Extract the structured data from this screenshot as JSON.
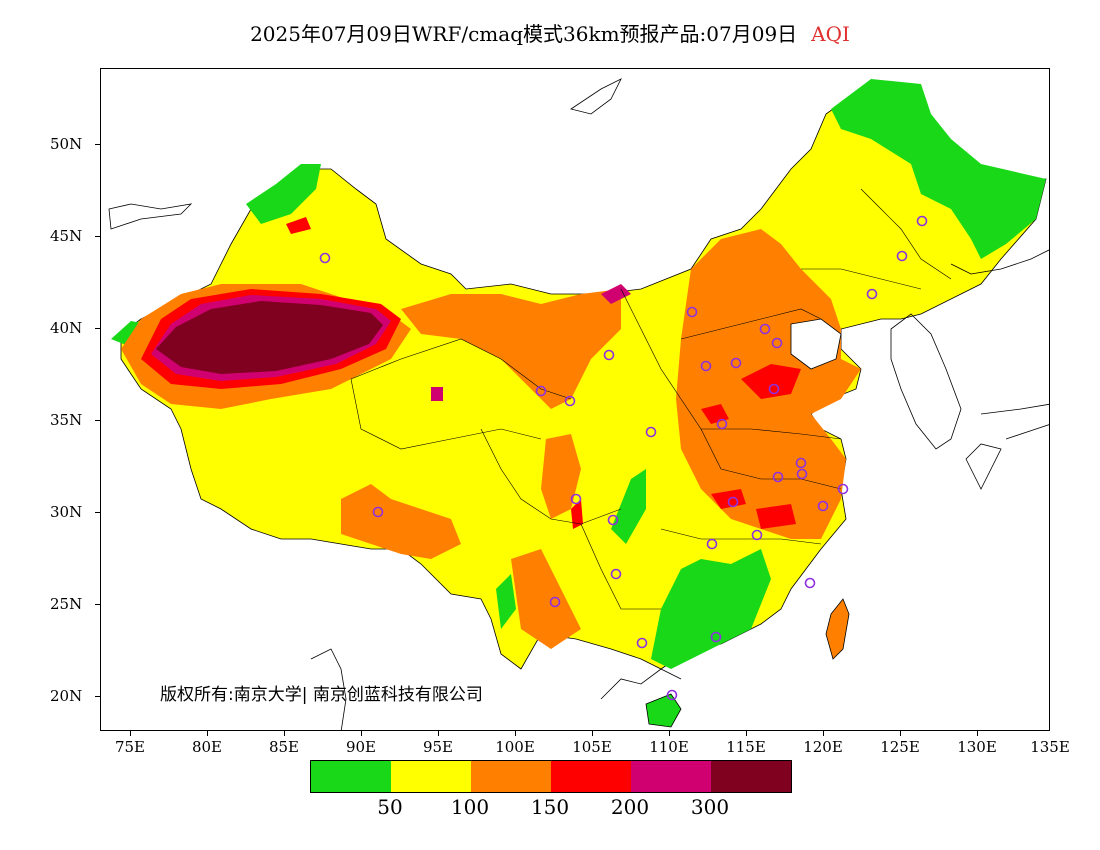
{
  "title": {
    "main": "2025年07月09日WRF/cmaq模式36km预报产品:07月09日",
    "variable": "AQI"
  },
  "axes": {
    "lat_labels": [
      "50N",
      "45N",
      "40N",
      "35N",
      "30N",
      "25N",
      "20N"
    ],
    "lon_labels": [
      "75E",
      "80E",
      "85E",
      "90E",
      "95E",
      "100E",
      "105E",
      "110E",
      "115E",
      "120E",
      "125E",
      "130E",
      "135E"
    ]
  },
  "copyright": "版权所有:南京大学| 南京创蓝科技有限公司",
  "legend": {
    "colors": [
      "#18d818",
      "#ffff00",
      "#ff8000",
      "#ff0000",
      "#d00070",
      "#800020"
    ],
    "labels": [
      "50",
      "100",
      "150",
      "200",
      "300"
    ]
  },
  "colors": {
    "good": "#18d818",
    "moderate": "#ffff00",
    "usg": "#ff8000",
    "unhealthy": "#ff0000",
    "very_unhealthy": "#d00070",
    "hazardous": "#800020",
    "city_marker": "#9030e0"
  }
}
